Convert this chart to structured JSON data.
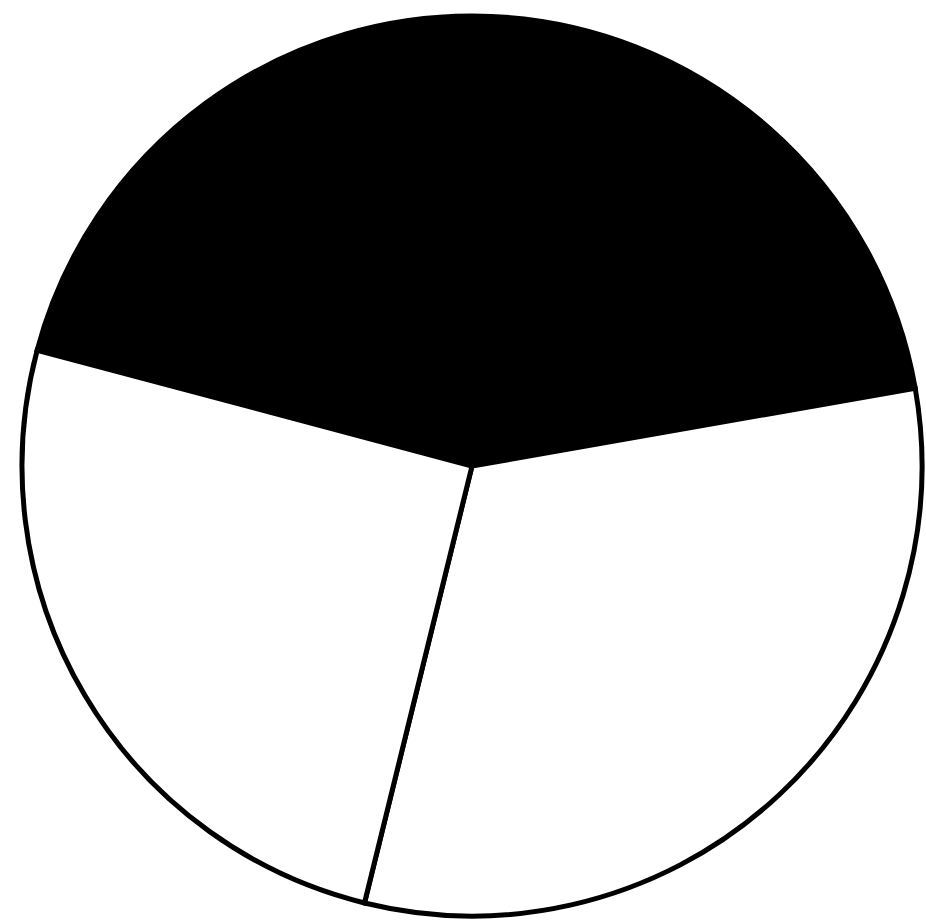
{
  "chart_data": {
    "type": "pie",
    "categories": [
      null,
      null,
      null
    ],
    "values": [
      43.1,
      31.6,
      25.3
    ],
    "colors": [
      "#000000",
      "#ffffff",
      "#ffffff"
    ]
  }
}
